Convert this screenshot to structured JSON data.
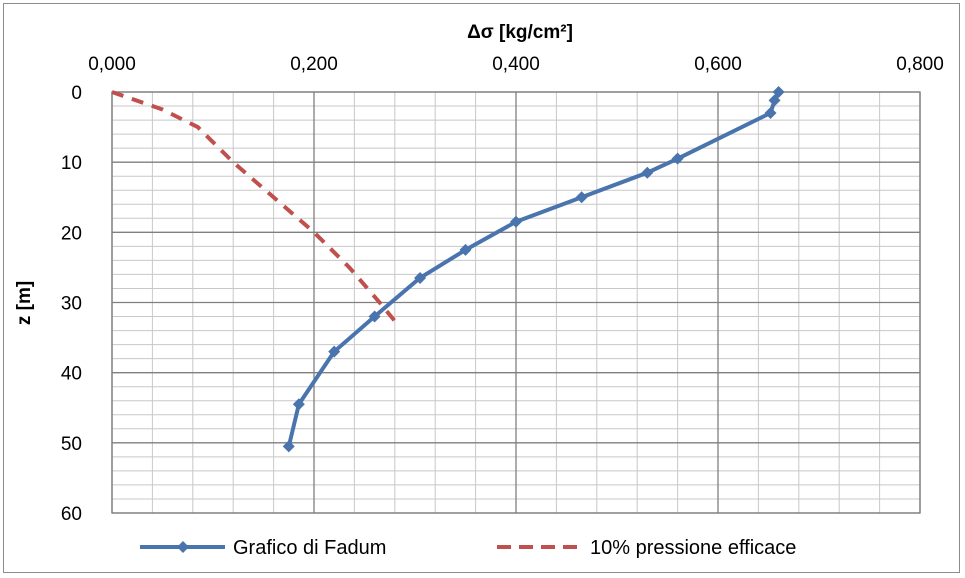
{
  "chart_data": {
    "type": "line",
    "x_axis": {
      "label": "Δσ [kg/cm²]",
      "position": "top",
      "range": [
        0,
        0.8
      ],
      "ticks": [
        0,
        0.2,
        0.4,
        0.6,
        0.8
      ],
      "tick_labels": [
        "0,000",
        "0,200",
        "0,400",
        "0,600",
        "0,800"
      ],
      "minor_step": 0.04
    },
    "y_axis": {
      "label": "z [m]",
      "inverted": true,
      "range": [
        0,
        60
      ],
      "ticks": [
        0,
        10,
        20,
        30,
        40,
        50,
        60
      ],
      "tick_labels": [
        "0",
        "10",
        "20",
        "30",
        "40",
        "50",
        "60"
      ],
      "minor_step": 2
    },
    "grid": true,
    "legend_position": "bottom",
    "series": [
      {
        "name": "Grafico di Fadum",
        "color": "#4a74ad",
        "style": "solid-markers",
        "points": [
          {
            "x": 0.66,
            "y": 0
          },
          {
            "x": 0.656,
            "y": 1.2
          },
          {
            "x": 0.652,
            "y": 3
          },
          {
            "x": 0.56,
            "y": 9.5
          },
          {
            "x": 0.53,
            "y": 11.5
          },
          {
            "x": 0.465,
            "y": 15
          },
          {
            "x": 0.4,
            "y": 18.5
          },
          {
            "x": 0.35,
            "y": 22.5
          },
          {
            "x": 0.305,
            "y": 26.5
          },
          {
            "x": 0.26,
            "y": 32
          },
          {
            "x": 0.22,
            "y": 37
          },
          {
            "x": 0.185,
            "y": 44.5
          },
          {
            "x": 0.175,
            "y": 50.5
          }
        ]
      },
      {
        "name": "10% pressione efficace",
        "color": "#c0504d",
        "style": "dashed",
        "points": [
          {
            "x": 0.0,
            "y": 0
          },
          {
            "x": 0.05,
            "y": 2.5
          },
          {
            "x": 0.085,
            "y": 5
          },
          {
            "x": 0.12,
            "y": 10
          },
          {
            "x": 0.16,
            "y": 15
          },
          {
            "x": 0.2,
            "y": 20
          },
          {
            "x": 0.235,
            "y": 25
          },
          {
            "x": 0.265,
            "y": 30
          },
          {
            "x": 0.285,
            "y": 33.5
          }
        ]
      }
    ]
  }
}
